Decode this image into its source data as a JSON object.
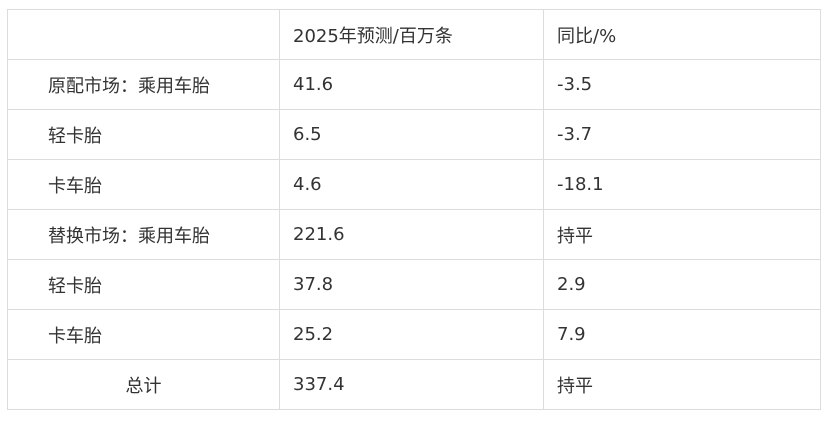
{
  "table": {
    "headers": [
      "",
      "2025年预测/百万条",
      "同比/%"
    ],
    "rows": [
      [
        "原配市场：乘用车胎",
        "41.6",
        "-3.5"
      ],
      [
        "轻卡胎",
        "6.5",
        "-3.7"
      ],
      [
        "卡车胎",
        "4.6",
        "-18.1"
      ],
      [
        "替换市场：乘用车胎",
        "221.6",
        "持平"
      ],
      [
        "轻卡胎",
        "37.8",
        "2.9"
      ],
      [
        "卡车胎",
        "25.2",
        "7.9"
      ],
      [
        "总计",
        "337.4",
        "持平"
      ]
    ]
  }
}
